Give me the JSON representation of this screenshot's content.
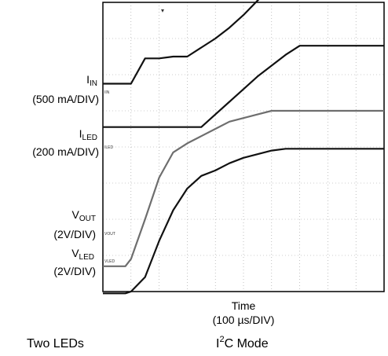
{
  "chart_data": {
    "type": "line",
    "title": "",
    "grid": true,
    "x_divisions": 10,
    "y_divisions": 8,
    "x_unit": "100 µs/DIV",
    "x": [
      0.0,
      0.5,
      0.8,
      1.0,
      1.5,
      2.0,
      2.5,
      3.0,
      3.5,
      4.0,
      4.5,
      5.0,
      5.5,
      6.0,
      6.5,
      7.0,
      7.5,
      8.0,
      8.5,
      9.0,
      9.5,
      10.0
    ],
    "series": [
      {
        "name": "IIN",
        "values": [
          1.75,
          1.75,
          1.75,
          1.75,
          2.45,
          2.45,
          2.5,
          2.5,
          2.75,
          3.0,
          3.3,
          3.65,
          4.05,
          4.4,
          4.85,
          5.15,
          5.15,
          5.15,
          5.15,
          5.15,
          5.15,
          5.15
        ]
      },
      {
        "name": "ILED",
        "values": [
          0.55,
          0.55,
          0.55,
          0.55,
          0.55,
          0.55,
          0.55,
          0.55,
          0.55,
          0.9,
          1.25,
          1.6,
          1.95,
          2.25,
          2.55,
          2.8,
          2.8,
          2.8,
          2.8,
          2.8,
          2.8,
          2.8
        ]
      },
      {
        "name": "VOUT",
        "values": [
          -3.3,
          -3.3,
          -3.3,
          -3.1,
          -2.0,
          -0.85,
          -0.15,
          0.1,
          0.3,
          0.5,
          0.7,
          0.8,
          0.9,
          1.0,
          1.0,
          1.0,
          1.0,
          1.0,
          1.0,
          1.0,
          1.0,
          1.0
        ]
      },
      {
        "name": "VLED",
        "values": [
          -4.05,
          -4.05,
          -4.05,
          -4.0,
          -3.6,
          -2.6,
          -1.75,
          -1.15,
          -0.8,
          -0.65,
          -0.45,
          -0.3,
          -0.2,
          -0.1,
          -0.05,
          -0.05,
          -0.05,
          -0.05,
          -0.05,
          -0.05,
          -0.05,
          -0.05
        ]
      }
    ]
  },
  "labels": {
    "iin_main": "I",
    "iin_sub": "IN",
    "iin_scale": "(500 mA/DIV)",
    "iled_main": "I",
    "iled_sub": "LED",
    "iled_scale": "(200 mA/DIV)",
    "vout_main": "V",
    "vout_sub": "OUT",
    "vout_scale": "(2V/DIV)",
    "vled_main": "V",
    "vled_sub": "LED",
    "vled_scale": "(2V/DIV)",
    "time_title": "Time",
    "time_scale": "(100 µs/DIV)",
    "marker_iin": "IIN",
    "marker_iled": "ILED",
    "marker_vout": "VOUT",
    "marker_vled": "VLED"
  },
  "footer": {
    "left": "Two LEDs",
    "right_pre": "I",
    "right_sup": "2",
    "right_post": "C Mode"
  },
  "colors": {
    "trace_dark": "#111111",
    "trace_gray": "#6e6e6e",
    "grid": "#9a9a9a",
    "frame": "#000000"
  }
}
